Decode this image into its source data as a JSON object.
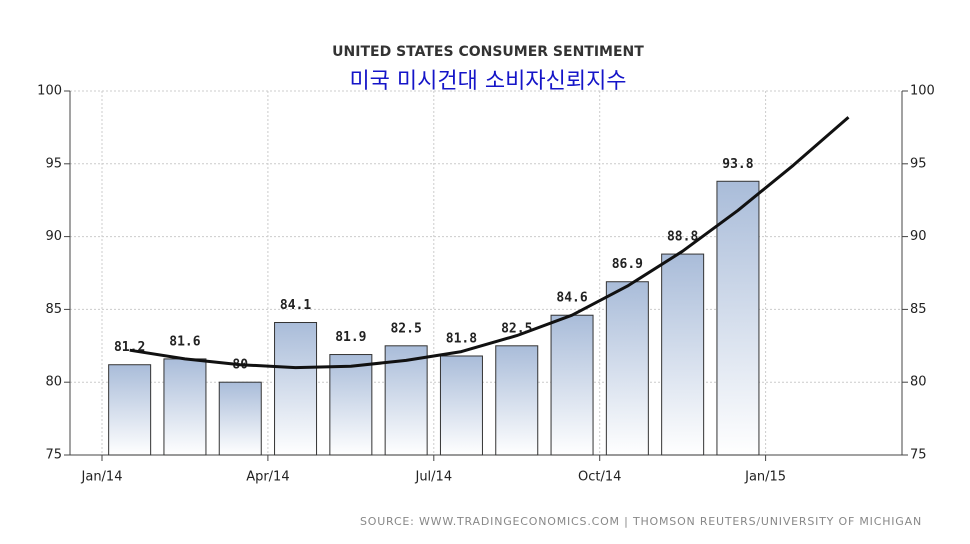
{
  "chart_data": {
    "type": "bar",
    "title": "UNITED STATES CONSUMER SENTIMENT",
    "subtitle": "미국 미시건대 소비자신뢰지수",
    "source": "SOURCE: WWW.TRADINGECONOMICS.COM | THOMSON REUTERS/UNIVERSITY OF MICHIGAN",
    "categories": [
      "Jan/14",
      null,
      null,
      "Apr/14",
      null,
      null,
      "Jul/14",
      null,
      null,
      "Oct/14",
      null,
      null,
      "Jan/15",
      null
    ],
    "values": [
      81.2,
      81.6,
      80,
      84.1,
      81.9,
      82.5,
      81.8,
      82.5,
      84.6,
      86.9,
      88.8,
      93.8,
      null,
      null
    ],
    "color": "#a9bcd9",
    "trend": {
      "color": "#111111",
      "values": [
        82.2,
        81.6,
        81.2,
        81.0,
        81.1,
        81.5,
        82.1,
        83.2,
        84.6,
        86.6,
        89.0,
        91.8,
        94.9,
        98.2
      ]
    },
    "ylim": [
      75,
      100
    ],
    "yticks": [
      75,
      80,
      85,
      90,
      95,
      100
    ],
    "y2lim": [
      75,
      100
    ],
    "y2ticks": [
      75,
      80,
      85,
      90,
      95,
      100
    ],
    "grid": true
  }
}
